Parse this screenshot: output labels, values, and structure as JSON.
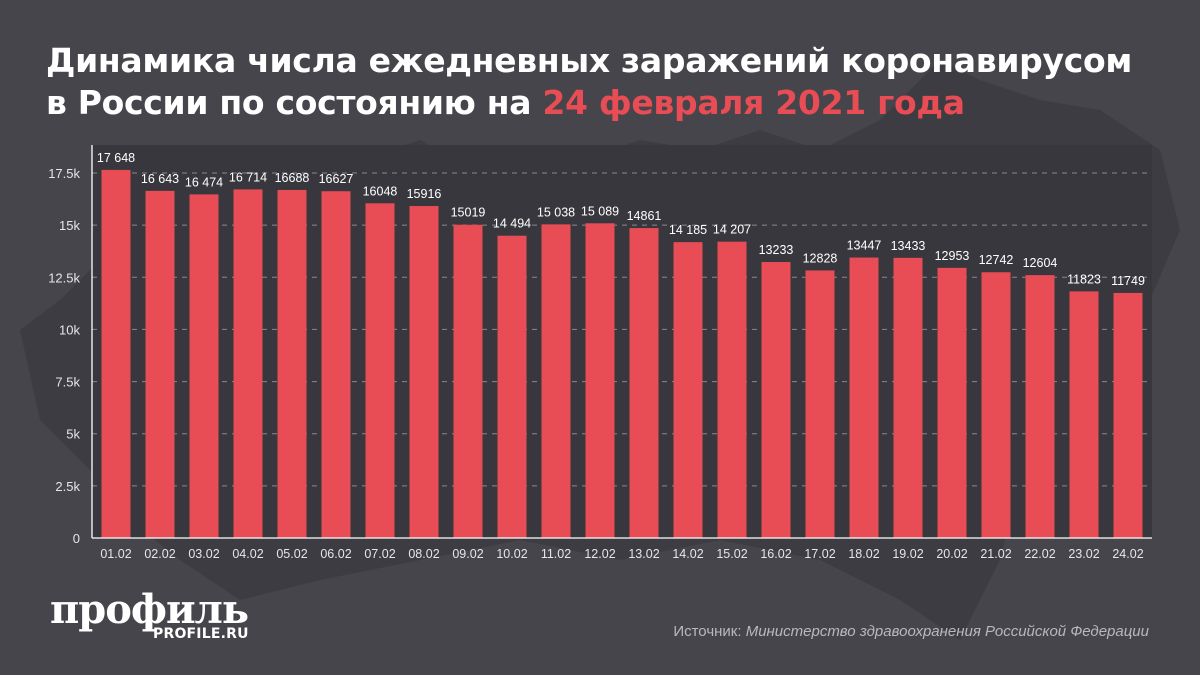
{
  "title": {
    "line1": "Динамика числа ежедневных заражений коронавирусом",
    "line2_prefix": "в России по состоянию на ",
    "line2_accent": "24 февраля 2021 года"
  },
  "colors": {
    "background": "#46454b",
    "plot_background": "#38373d",
    "bar": "#e84c55",
    "accent": "#e84c55",
    "text": "#ffffff",
    "grid": "#8a898e"
  },
  "chart_data": {
    "type": "bar",
    "title": "Динамика числа ежедневных заражений коронавирусом в России по состоянию на 24 февраля 2021 года",
    "xlabel": "",
    "ylabel": "",
    "categories": [
      "01.02",
      "02.02",
      "03.02",
      "04.02",
      "05.02",
      "06.02",
      "07.02",
      "08.02",
      "09.02",
      "10.02",
      "11.02",
      "12.02",
      "13.02",
      "14.02",
      "15.02",
      "16.02",
      "17.02",
      "18.02",
      "19.02",
      "20.02",
      "21.02",
      "22.02",
      "23.02",
      "24.02"
    ],
    "values": [
      17648,
      16643,
      16474,
      16714,
      16688,
      16627,
      16048,
      15916,
      15019,
      14494,
      15038,
      15089,
      14861,
      14185,
      14207,
      13233,
      12828,
      13447,
      13433,
      12953,
      12742,
      12604,
      11823,
      11749
    ],
    "data_labels": [
      "17 648",
      "16 643",
      "16 474",
      "16 714",
      "16688",
      "16627",
      "16048",
      "15916",
      "15019",
      "14 494",
      "15 038",
      "15 089",
      "14861",
      "14 185",
      "14 207",
      "13233",
      "12828",
      "13447",
      "13433",
      "12953",
      "12742",
      "12604",
      "11823",
      "11749"
    ],
    "ylim": [
      0,
      18500
    ],
    "yticks": [
      0,
      2500,
      5000,
      7500,
      10000,
      12500,
      15000,
      17500
    ],
    "ytick_labels": [
      "0",
      "2.5k",
      "5k",
      "7.5k",
      "10k",
      "12.5k",
      "15k",
      "17.5k"
    ],
    "grid": true,
    "legend": "none"
  },
  "logo": {
    "main": "профиль",
    "sub": "PROFILE.RU"
  },
  "source": {
    "label": "Источник: ",
    "value": "Министерство здравоохранения Российской Федерации"
  }
}
